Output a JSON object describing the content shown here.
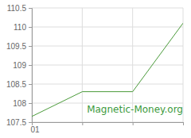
{
  "chart_data": {
    "type": "line",
    "categories": [
      "01",
      null,
      null,
      null
    ],
    "values": [
      107.65,
      108.3,
      108.3,
      110.1
    ],
    "color": "#4a9a3a",
    "ylim": [
      107.5,
      110.5
    ],
    "yticks": [
      107.5,
      108,
      108.5,
      109,
      109.5,
      110,
      110.5
    ],
    "grid": true,
    "annotations": [
      "Magnetic-Money.org"
    ]
  }
}
